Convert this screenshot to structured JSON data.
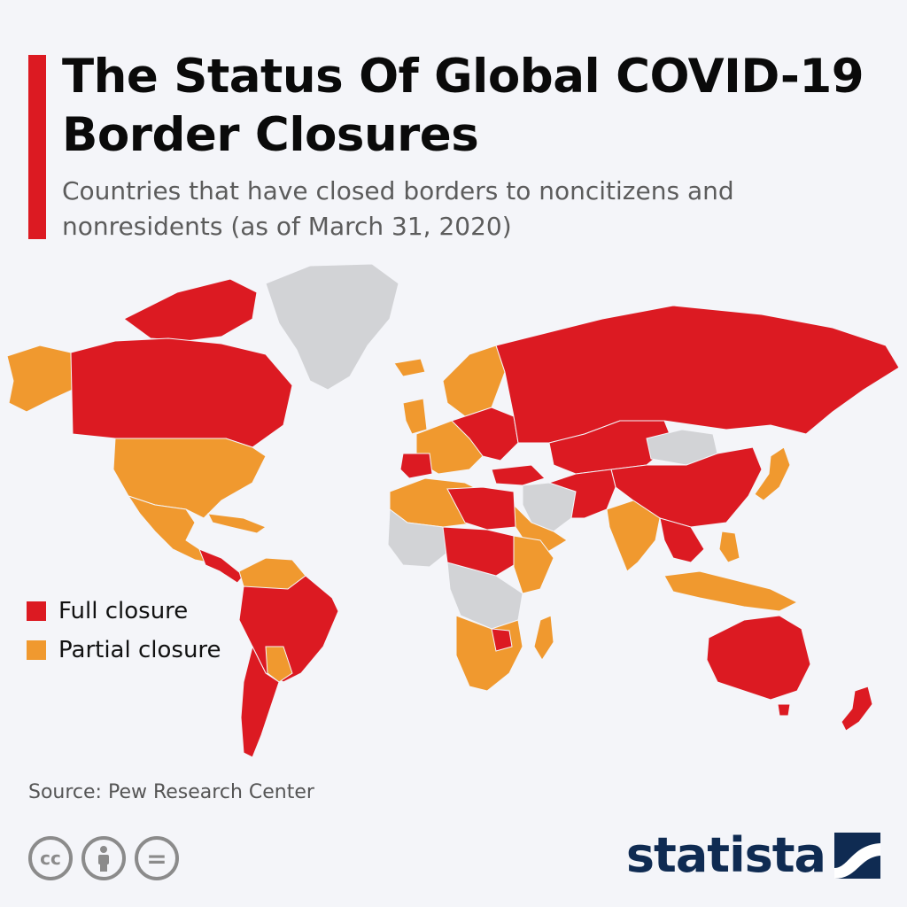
{
  "title": "The Status Of Global COVID-19 Border Closures",
  "subtitle": "Countries that have closed borders to noncitizens and nonresidents (as of March 31, 2020)",
  "legend": {
    "full": "Full closure",
    "partial": "Partial closure"
  },
  "colors": {
    "full": "#dc1a22",
    "partial": "#f0992f",
    "none": "#d2d3d6",
    "accent": "#dc1a22",
    "brand": "#0f2b52"
  },
  "source": "Source: Pew Research Center",
  "license_icons": [
    "creative-commons-icon",
    "attribution-icon",
    "no-derivatives-icon"
  ],
  "cc_label": "cc",
  "nd_label": "=",
  "brand": "statista"
}
